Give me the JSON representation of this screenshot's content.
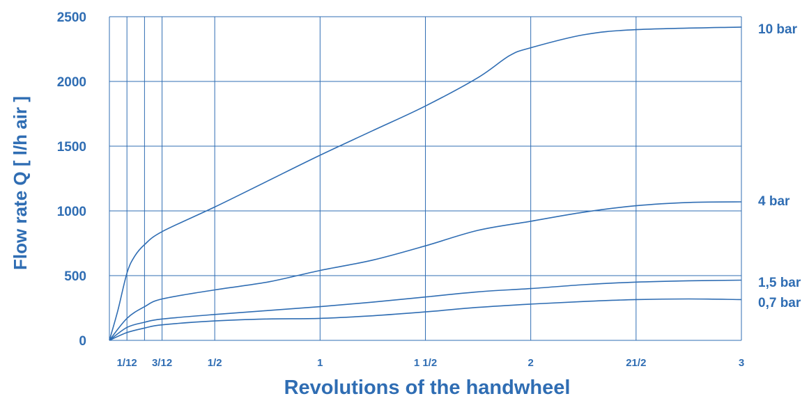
{
  "chart_data": {
    "type": "line",
    "title": "",
    "xlabel": "Revolutions of the handwheel",
    "ylabel": "Flow rate Q [ l/h air ]",
    "xlim": [
      0,
      3
    ],
    "ylim": [
      0,
      2500
    ],
    "grid": true,
    "legend": "inline-right",
    "color": "#2f6db3",
    "x_ticks": [
      {
        "value": 0.0833,
        "label": "1/12"
      },
      {
        "value": 0.25,
        "label": "3/12"
      },
      {
        "value": 0.5,
        "label": "1/2"
      },
      {
        "value": 1,
        "label": "1"
      },
      {
        "value": 1.5,
        "label": "1 1/2"
      },
      {
        "value": 2,
        "label": "2"
      },
      {
        "value": 2.5,
        "label": "21/2"
      },
      {
        "value": 3,
        "label": "3"
      }
    ],
    "x_grid_extra": [
      0.1667
    ],
    "y_ticks": [
      {
        "value": 0,
        "label": "0"
      },
      {
        "value": 500,
        "label": "500"
      },
      {
        "value": 1000,
        "label": "1000"
      },
      {
        "value": 1500,
        "label": "1500"
      },
      {
        "value": 2000,
        "label": "2000"
      },
      {
        "value": 2500,
        "label": "2500"
      }
    ],
    "series": [
      {
        "name": "10 bar",
        "x": [
          0,
          0.04,
          0.0833,
          0.12,
          0.167,
          0.25,
          0.5,
          0.75,
          1,
          1.25,
          1.5,
          1.75,
          1.9,
          2,
          2.25,
          2.5,
          3
        ],
        "y": [
          0,
          230,
          520,
          650,
          740,
          840,
          1030,
          1230,
          1430,
          1620,
          1810,
          2030,
          2200,
          2260,
          2360,
          2400,
          2420
        ]
      },
      {
        "name": "4 bar",
        "x": [
          0,
          0.0833,
          0.167,
          0.25,
          0.5,
          0.75,
          1,
          1.25,
          1.5,
          1.75,
          2,
          2.25,
          2.5,
          2.75,
          3
        ],
        "y": [
          0,
          170,
          260,
          320,
          390,
          450,
          540,
          620,
          730,
          850,
          920,
          990,
          1040,
          1065,
          1070
        ]
      },
      {
        "name": "1,5 bar",
        "x": [
          0,
          0.0833,
          0.167,
          0.25,
          0.5,
          0.75,
          1,
          1.25,
          1.5,
          1.75,
          2,
          2.25,
          2.5,
          2.75,
          3
        ],
        "y": [
          0,
          100,
          140,
          165,
          200,
          230,
          260,
          295,
          335,
          375,
          400,
          430,
          450,
          460,
          465
        ]
      },
      {
        "name": "0,7 bar",
        "x": [
          0,
          0.0833,
          0.167,
          0.25,
          0.5,
          0.75,
          1,
          1.25,
          1.5,
          1.75,
          2,
          2.25,
          2.5,
          2.75,
          3
        ],
        "y": [
          0,
          60,
          95,
          120,
          150,
          165,
          170,
          190,
          220,
          255,
          280,
          300,
          315,
          320,
          315
        ]
      }
    ]
  }
}
